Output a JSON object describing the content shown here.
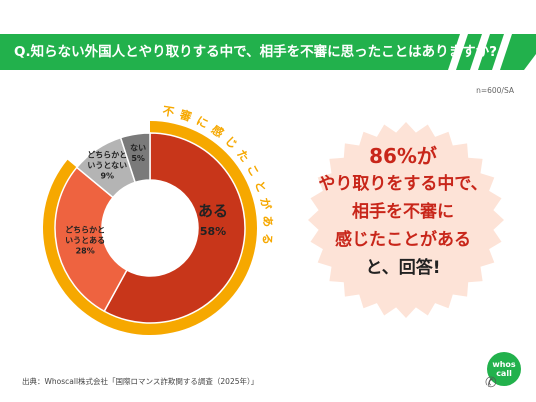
{
  "header": {
    "question": "Q.知らない外国人とやり取りする中で、相手を不審に思ったことはありますか?",
    "bg_color": "#22b14c"
  },
  "sample_note": "n=600/SA",
  "chart_data": {
    "type": "pie",
    "style": "donut",
    "title": "",
    "categories": [
      "ある",
      "どちらかというとある",
      "どちらかというとない",
      "ない"
    ],
    "values": [
      58,
      28,
      9,
      5
    ],
    "labels": [
      {
        "lines": [
          "ある"
        ],
        "pct": "58%"
      },
      {
        "lines": [
          "どちらかと",
          "いうとある"
        ],
        "pct": "28%"
      },
      {
        "lines": [
          "どちらかと",
          "いうとない"
        ],
        "pct": "9%"
      },
      {
        "lines": [
          "ない"
        ],
        "pct": "5%"
      }
    ],
    "colors": [
      "#c8361a",
      "#ee6340",
      "#b4b4b4",
      "#7a7a7a"
    ],
    "group_arc": {
      "label": "不審に感じたことがある",
      "covers": [
        "ある",
        "どちらかというとある"
      ],
      "total_pct": 86,
      "color": "#f6a800"
    },
    "start": "top",
    "direction": "clockwise"
  },
  "callout": {
    "lines": [
      "86%が",
      "やり取りをする中で、",
      "相手を不審に",
      "感じたことがある",
      "と、回答!"
    ],
    "bg_color": "#fde3d7",
    "text_color": "#c8261a"
  },
  "source": "出典：Whoscall株式会社「国際ロマンス詐欺関する調査（2025年）」",
  "logo": {
    "line1": "whos",
    "line2": "call",
    "icon": "phone-icon"
  }
}
